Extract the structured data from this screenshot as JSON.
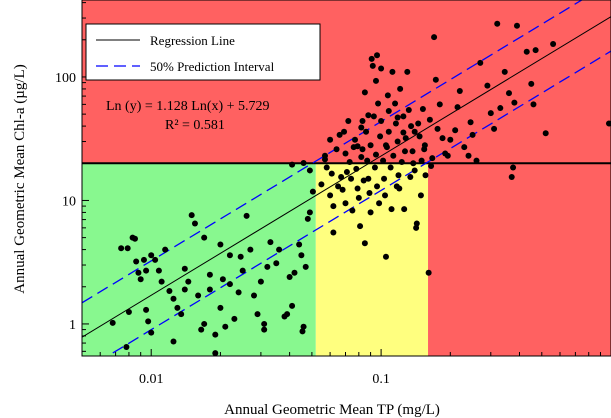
{
  "chart_data": {
    "type": "scatter",
    "xlabel": "Annual Geometric Mean TP (mg/L)",
    "ylabel": "Annual Geometric Mean Chl-a (µg/L)",
    "xscale": "log",
    "yscale": "log",
    "xlim": [
      0.005,
      1.0
    ],
    "ylim": [
      0.55,
      420
    ],
    "x_ticks": [
      {
        "value": 0.01,
        "label": "0.01"
      },
      {
        "value": 0.1,
        "label": "0.1"
      }
    ],
    "y_ticks": [
      {
        "value": 1,
        "label": "1"
      },
      {
        "value": 10,
        "label": "10"
      },
      {
        "value": 100,
        "label": "100"
      }
    ],
    "grid": false,
    "legend_position": "top-left",
    "legend": [
      {
        "label": "Regression Line",
        "style": "solid",
        "color": "#000000"
      },
      {
        "label": "50% Prediction Interval",
        "style": "dashed",
        "color": "#0000ff"
      }
    ],
    "annotations": {
      "equation": "Ln (y) = 1.128 Ln(x) + 5.729",
      "r_squared": "R² = 0.581"
    },
    "regression": {
      "slope": 1.128,
      "intercept": 5.729,
      "pi_factor": 1.9
    },
    "threshold_chla": 20,
    "zones": [
      {
        "name": "green",
        "x_range": [
          0.005,
          0.052
        ],
        "y_range": [
          0.55,
          20
        ],
        "color": "#88f88f"
      },
      {
        "name": "yellow",
        "x_range": [
          0.052,
          0.16
        ],
        "y_range": [
          0.55,
          20
        ],
        "color": "#ffff7f"
      },
      {
        "name": "red-right",
        "x_range": [
          0.16,
          1.0
        ],
        "y_range": [
          0.55,
          20
        ],
        "color": "#ff6161"
      },
      {
        "name": "red-top",
        "x_range": [
          0.005,
          1.0
        ],
        "y_range": [
          20,
          420
        ],
        "color": "#ff6161"
      }
    ],
    "colors": {
      "regression": "#000000",
      "prediction": "#0000ff",
      "points": "#000000"
    },
    "points": [
      [
        0.0068,
        1.02
      ],
      [
        0.0074,
        4.1
      ],
      [
        0.0079,
        4.1
      ],
      [
        0.008,
        1.25
      ],
      [
        0.0078,
        0.65
      ],
      [
        0.0083,
        5.0
      ],
      [
        0.0085,
        4.9
      ],
      [
        0.0086,
        3.2
      ],
      [
        0.0088,
        2.6
      ],
      [
        0.009,
        2.3
      ],
      [
        0.0093,
        3.3
      ],
      [
        0.0095,
        2.7
      ],
      [
        0.0095,
        1.3
      ],
      [
        0.0097,
        1.05
      ],
      [
        0.01,
        0.85
      ],
      [
        0.01,
        3.6
      ],
      [
        0.0104,
        3.3
      ],
      [
        0.0108,
        2.7
      ],
      [
        0.0111,
        2.2
      ],
      [
        0.0115,
        4.0
      ],
      [
        0.012,
        1.85
      ],
      [
        0.0125,
        1.6
      ],
      [
        0.0125,
        0.72
      ],
      [
        0.013,
        1.35
      ],
      [
        0.0135,
        1.2
      ],
      [
        0.014,
        1.9
      ],
      [
        0.014,
        2.8
      ],
      [
        0.0145,
        2.2
      ],
      [
        0.015,
        7.6
      ],
      [
        0.0155,
        6.5
      ],
      [
        0.016,
        1.7
      ],
      [
        0.0165,
        0.9
      ],
      [
        0.017,
        1.0
      ],
      [
        0.017,
        5.0
      ],
      [
        0.018,
        2.5
      ],
      [
        0.018,
        1.9
      ],
      [
        0.019,
        0.58
      ],
      [
        0.019,
        0.82
      ],
      [
        0.02,
        1.35
      ],
      [
        0.02,
        4.4
      ],
      [
        0.0205,
        2.3
      ],
      [
        0.021,
        0.95
      ],
      [
        0.022,
        3.6
      ],
      [
        0.022,
        2.1
      ],
      [
        0.023,
        1.1
      ],
      [
        0.024,
        1.8
      ],
      [
        0.0245,
        3.5
      ],
      [
        0.025,
        2.7
      ],
      [
        0.026,
        7.5
      ],
      [
        0.027,
        4.0
      ],
      [
        0.028,
        1.7
      ],
      [
        0.029,
        1.2
      ],
      [
        0.03,
        2.2
      ],
      [
        0.031,
        1.0
      ],
      [
        0.031,
        0.9
      ],
      [
        0.032,
        2.9
      ],
      [
        0.033,
        4.6
      ],
      [
        0.035,
        3.1
      ],
      [
        0.036,
        4.0
      ],
      [
        0.038,
        1.15
      ],
      [
        0.039,
        1.2
      ],
      [
        0.04,
        2.4
      ],
      [
        0.041,
        1.4
      ],
      [
        0.042,
        2.6
      ],
      [
        0.044,
        4.4
      ],
      [
        0.045,
        3.6
      ],
      [
        0.046,
        0.95
      ],
      [
        0.0455,
        0.87
      ],
      [
        0.047,
        2.9
      ],
      [
        0.048,
        7.1
      ],
      [
        0.049,
        8.0
      ],
      [
        0.0505,
        11.8
      ],
      [
        0.041,
        19.5
      ],
      [
        0.046,
        20.1
      ],
      [
        0.049,
        17.5
      ],
      [
        0.055,
        13.5
      ],
      [
        0.057,
        21.5
      ],
      [
        0.058,
        18.5
      ],
      [
        0.06,
        11.0
      ],
      [
        0.06,
        31.0
      ],
      [
        0.061,
        16.5
      ],
      [
        0.062,
        5.5
      ],
      [
        0.062,
        9.0
      ],
      [
        0.064,
        26.0
      ],
      [
        0.065,
        13.0
      ],
      [
        0.066,
        34.0
      ],
      [
        0.067,
        15.5
      ],
      [
        0.068,
        12.2
      ],
      [
        0.07,
        9.5
      ],
      [
        0.07,
        24.0
      ],
      [
        0.071,
        17.0
      ],
      [
        0.072,
        44.0
      ],
      [
        0.073,
        20.5
      ],
      [
        0.074,
        15.0
      ],
      [
        0.075,
        8.3
      ],
      [
        0.076,
        27.0
      ],
      [
        0.077,
        31.0
      ],
      [
        0.078,
        18.0
      ],
      [
        0.079,
        12.5
      ],
      [
        0.08,
        10.5
      ],
      [
        0.081,
        6.2
      ],
      [
        0.082,
        22.5
      ],
      [
        0.082,
        39.0
      ],
      [
        0.083,
        26.0
      ],
      [
        0.084,
        14.5
      ],
      [
        0.085,
        4.5
      ],
      [
        0.085,
        75.0
      ],
      [
        0.086,
        36.0
      ],
      [
        0.087,
        21.0
      ],
      [
        0.088,
        15.0
      ],
      [
        0.089,
        11.5
      ],
      [
        0.09,
        8.0
      ],
      [
        0.09,
        28.0
      ],
      [
        0.091,
        140.0
      ],
      [
        0.092,
        123.0
      ],
      [
        0.093,
        48.0
      ],
      [
        0.094,
        18.5
      ],
      [
        0.095,
        23.5
      ],
      [
        0.096,
        13.0
      ],
      [
        0.096,
        150.0
      ],
      [
        0.097,
        61.0
      ],
      [
        0.098,
        9.5
      ],
      [
        0.099,
        33.0
      ],
      [
        0.1,
        117.0
      ],
      [
        0.1,
        44.0
      ],
      [
        0.102,
        21.0
      ],
      [
        0.103,
        15.0
      ],
      [
        0.104,
        11.0
      ],
      [
        0.105,
        3.5
      ],
      [
        0.106,
        27.0
      ],
      [
        0.107,
        71.0
      ],
      [
        0.108,
        36.0
      ],
      [
        0.11,
        18.5
      ],
      [
        0.111,
        8.5
      ],
      [
        0.112,
        110.0
      ],
      [
        0.113,
        23.0
      ],
      [
        0.115,
        61.0
      ],
      [
        0.116,
        42.0
      ],
      [
        0.117,
        13.0
      ],
      [
        0.118,
        30.0
      ],
      [
        0.119,
        16.0
      ],
      [
        0.12,
        12.5
      ],
      [
        0.121,
        80.0
      ],
      [
        0.123,
        20.5
      ],
      [
        0.125,
        48.0
      ],
      [
        0.126,
        8.5
      ],
      [
        0.127,
        25.0
      ],
      [
        0.128,
        32.0
      ],
      [
        0.13,
        110.0
      ],
      [
        0.132,
        54.0
      ],
      [
        0.134,
        15.5
      ],
      [
        0.135,
        40.0
      ],
      [
        0.137,
        25.0
      ],
      [
        0.138,
        20.0
      ],
      [
        0.14,
        17.5
      ],
      [
        0.142,
        6.0
      ],
      [
        0.143,
        6.5
      ],
      [
        0.145,
        42.0
      ],
      [
        0.147,
        33.0
      ],
      [
        0.149,
        11.0
      ],
      [
        0.15,
        21.0
      ],
      [
        0.152,
        55.0
      ],
      [
        0.155,
        28.0
      ],
      [
        0.156,
        16.0
      ],
      [
        0.161,
        2.6
      ],
      [
        0.163,
        45.0
      ],
      [
        0.165,
        19.0
      ],
      [
        0.167,
        22.0
      ],
      [
        0.17,
        210.0
      ],
      [
        0.173,
        95.0
      ],
      [
        0.176,
        38.0
      ],
      [
        0.18,
        60.0
      ],
      [
        0.185,
        32.0
      ],
      [
        0.19,
        24.0
      ],
      [
        0.195,
        23.0
      ],
      [
        0.2,
        31.0
      ],
      [
        0.21,
        37.0
      ],
      [
        0.215,
        57.0
      ],
      [
        0.22,
        77.0
      ],
      [
        0.23,
        27.0
      ],
      [
        0.24,
        23.0
      ],
      [
        0.245,
        43.0
      ],
      [
        0.25,
        34.0
      ],
      [
        0.26,
        21.0
      ],
      [
        0.27,
        130.0
      ],
      [
        0.29,
        85.0
      ],
      [
        0.3,
        51.0
      ],
      [
        0.31,
        38.0
      ],
      [
        0.32,
        270.0
      ],
      [
        0.33,
        56.0
      ],
      [
        0.345,
        110.0
      ],
      [
        0.36,
        74.0
      ],
      [
        0.37,
        15.5
      ],
      [
        0.375,
        18.5
      ],
      [
        0.38,
        62.0
      ],
      [
        0.39,
        260.0
      ],
      [
        0.43,
        160.0
      ],
      [
        0.45,
        88.0
      ],
      [
        0.46,
        60.0
      ],
      [
        0.47,
        165.0
      ],
      [
        0.52,
        35.0
      ],
      [
        0.56,
        185.0
      ],
      [
        0.98,
        42.0
      ],
      [
        0.057,
        23.0
      ],
      [
        0.069,
        36.0
      ],
      [
        0.079,
        27.5
      ],
      [
        0.088,
        49.0
      ],
      [
        0.105,
        28.0
      ],
      [
        0.108,
        53.0
      ],
      [
        0.118,
        47.0
      ],
      [
        0.14,
        36.0
      ],
      [
        0.154,
        26.0
      ],
      [
        0.125,
        35.5
      ],
      [
        0.095,
        93.0
      ],
      [
        0.083,
        44.0
      ]
    ]
  }
}
